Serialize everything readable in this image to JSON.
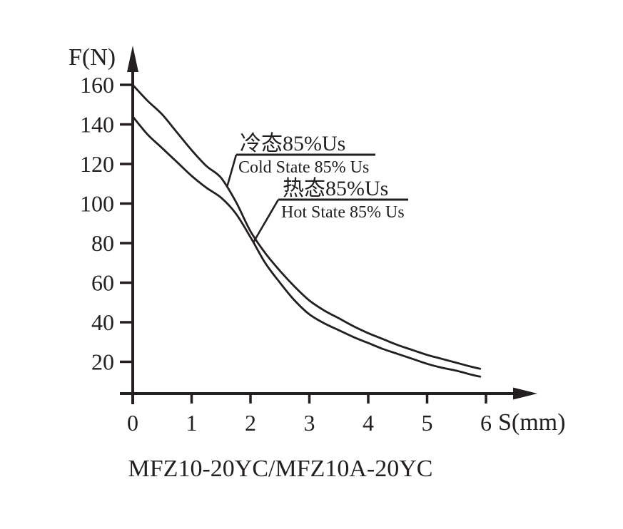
{
  "colors": {
    "ink": "#231f20",
    "background": "#ffffff"
  },
  "chart_data": {
    "type": "line",
    "title": "MFZ10-20YC/MFZ10A-20YC",
    "xlabel": "S(mm)",
    "ylabel": "F(N)",
    "xlim": [
      0,
      6.9
    ],
    "ylim": [
      0,
      182
    ],
    "x_ticks": [
      0,
      1,
      2,
      3,
      4,
      5,
      6
    ],
    "y_ticks": [
      20,
      40,
      60,
      80,
      100,
      120,
      140,
      160
    ],
    "grid": false,
    "legend_style": "callout-labels-with-leader-lines",
    "x": [
      0,
      0.25,
      0.5,
      0.75,
      1,
      1.25,
      1.5,
      1.75,
      2,
      2.25,
      2.5,
      2.75,
      3,
      3.25,
      3.5,
      3.75,
      4,
      4.25,
      4.5,
      4.75,
      5,
      5.25,
      5.5,
      5.75,
      5.9
    ],
    "series": [
      {
        "id": "cold",
        "label_zh": "冷态85%Us",
        "label_en": "Cold State 85% Us",
        "values": [
          160,
          152,
          145,
          136,
          127,
          119,
          113,
          101,
          86,
          75,
          66,
          58,
          51,
          46,
          42,
          38,
          34.5,
          31.5,
          28.5,
          26,
          23.5,
          21.5,
          19.5,
          17.5,
          16.5
        ]
      },
      {
        "id": "hot",
        "label_zh": "热态85%Us",
        "label_en": "Hot State 85% Us",
        "values": [
          144,
          135,
          128,
          121,
          114,
          108,
          103,
          95,
          83,
          70,
          60,
          51,
          44,
          39.5,
          36,
          32.5,
          29.5,
          26.5,
          24,
          21.5,
          19,
          17,
          15.5,
          13.5,
          12.5
        ]
      }
    ]
  }
}
